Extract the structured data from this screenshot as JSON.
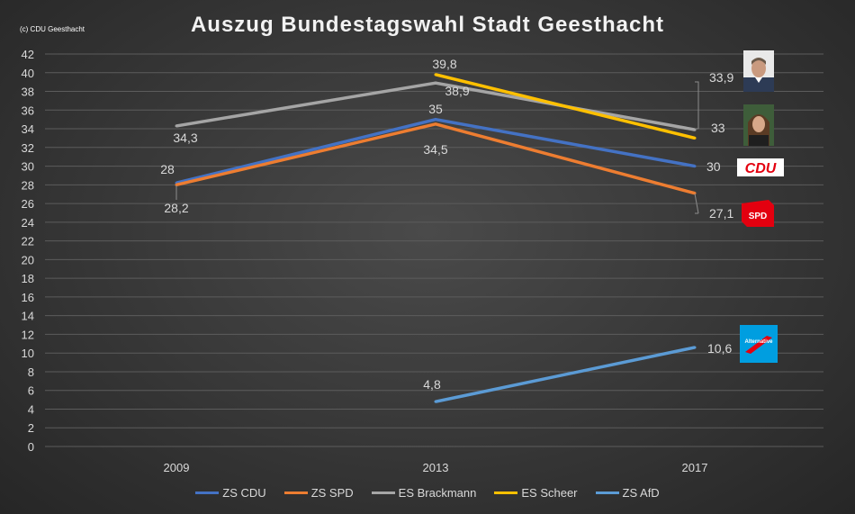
{
  "title": "Auszug Bundestagswahl Stadt Geesthacht",
  "copyright": "(c) CDU Geesthacht",
  "chart_data": {
    "type": "line",
    "categories": [
      "2009",
      "2013",
      "2017"
    ],
    "ylim": [
      0,
      42
    ],
    "ytick_step": 2,
    "grid": true,
    "legend_position": "bottom",
    "series": [
      {
        "name": "ZS CDU",
        "color": "#4472C4",
        "values": [
          28.2,
          35,
          30
        ],
        "labels": [
          "28,2",
          "35",
          "30"
        ]
      },
      {
        "name": "ZS SPD",
        "color": "#ED7D31",
        "values": [
          28,
          34.5,
          27.1
        ],
        "labels": [
          "28",
          "34,5",
          "27,1"
        ]
      },
      {
        "name": "ES Brackmann",
        "color": "#A5A5A5",
        "values": [
          34.3,
          38.9,
          33.9
        ],
        "labels": [
          "34,3",
          "38,9",
          "33,9"
        ]
      },
      {
        "name": "ES Scheer",
        "color": "#FFC000",
        "values": [
          null,
          39.8,
          33
        ],
        "labels": [
          "",
          "39,8",
          "33"
        ]
      },
      {
        "name": "ZS AfD",
        "color": "#5B9BD5",
        "values": [
          null,
          4.8,
          10.6
        ],
        "labels": [
          "",
          "4,8",
          "10,6"
        ]
      }
    ]
  },
  "badges": {
    "cdu": {
      "text": "CDU",
      "color": "#e3000f"
    },
    "spd": {
      "text": "SPD",
      "color": "#e3000f"
    },
    "afd": {
      "text": "Alternative",
      "color": "#009ee0"
    }
  }
}
